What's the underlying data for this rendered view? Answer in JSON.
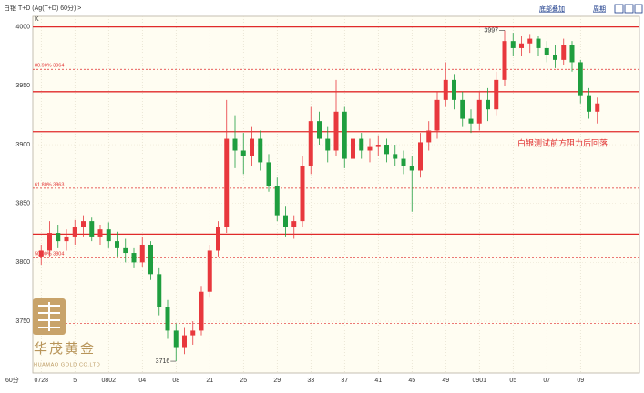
{
  "chart_data": {
    "type": "candlestick",
    "title": "白银  T+D (Ag(T+D) 60分) >",
    "indicator": "K",
    "period": "60分",
    "toolbar": [
      "底部叠加",
      "周期"
    ],
    "annotation": "白银测试前方阻力后回落",
    "high_label": 3997,
    "low_label": 3716,
    "logo": {
      "name": "华茂黄金",
      "subtitle": "HUAMAO GOLD CO.LTD"
    },
    "up_color": "#e8383d",
    "down_color": "#1f9e3f",
    "level_color": "#e02a2a",
    "grid": true,
    "ylim": [
      3706,
      4009
    ],
    "yticks": [
      3750,
      3800,
      3850,
      3900,
      3950,
      4000
    ],
    "xlim": [
      0,
      72
    ],
    "xticks": [
      {
        "value": 1,
        "label": "0728"
      },
      5,
      {
        "value": 9,
        "label": "0802"
      },
      {
        "value": 13,
        "label": "04"
      },
      {
        "value": 17,
        "label": "08"
      },
      21,
      25,
      29,
      33,
      37,
      41,
      45,
      49,
      {
        "value": 53,
        "label": "0901"
      },
      {
        "value": 57,
        "label": "05"
      },
      {
        "value": 61,
        "label": "07"
      },
      {
        "value": 65,
        "label": "09"
      }
    ],
    "resistance_levels": [
      4000,
      3945,
      3911,
      3824
    ],
    "fib_levels": [
      {
        "value": 3964,
        "label": "80.90% 3964"
      },
      {
        "value": 3863,
        "label": "61.80% 3863"
      },
      {
        "value": 3804,
        "label": "50.00% 3804"
      }
    ],
    "dashed_levels": [
      3748
    ],
    "x": [
      1,
      2,
      3,
      4,
      5,
      6,
      7,
      8,
      9,
      10,
      11,
      12,
      13,
      14,
      15,
      16,
      17,
      18,
      19,
      20,
      21,
      22,
      23,
      24,
      25,
      26,
      27,
      28,
      29,
      30,
      31,
      32,
      33,
      34,
      35,
      36,
      37,
      38,
      39,
      40,
      41,
      42,
      43,
      44,
      45,
      46,
      47,
      48,
      49,
      50,
      51,
      52,
      53,
      54,
      55,
      56,
      57,
      58,
      59,
      60,
      61,
      62,
      63,
      64,
      65,
      66,
      67
    ],
    "open": [
      3805,
      3810,
      3825,
      3818,
      3822,
      3830,
      3835,
      3822,
      3828,
      3818,
      3812,
      3808,
      3800,
      3815,
      3790,
      3762,
      3742,
      3728,
      3738,
      3742,
      3775,
      3810,
      3830,
      3905,
      3895,
      3890,
      3905,
      3885,
      3865,
      3840,
      3830,
      3835,
      3882,
      3920,
      3905,
      3895,
      3928,
      3888,
      3905,
      3895,
      3898,
      3900,
      3892,
      3888,
      3882,
      3878,
      3902,
      3912,
      3938,
      3955,
      3938,
      3922,
      3918,
      3938,
      3930,
      3955,
      3988,
      3982,
      3986,
      3990,
      3982,
      3976,
      3972,
      3985,
      3970,
      3942,
      3928
    ],
    "high": [
      3815,
      3835,
      3832,
      3828,
      3836,
      3840,
      3838,
      3832,
      3834,
      3826,
      3820,
      3812,
      3822,
      3818,
      3795,
      3768,
      3748,
      3745,
      3750,
      3780,
      3815,
      3835,
      3938,
      3925,
      3910,
      3915,
      3912,
      3892,
      3872,
      3848,
      3840,
      3890,
      3932,
      3928,
      3915,
      3955,
      3932,
      3912,
      3910,
      3905,
      3908,
      3905,
      3900,
      3895,
      3890,
      3910,
      3920,
      3945,
      3970,
      3960,
      3945,
      3930,
      3945,
      3948,
      3962,
      3997,
      3995,
      3992,
      3994,
      3992,
      3988,
      3985,
      3990,
      3988,
      3972,
      3948,
      3940
    ],
    "low": [
      3798,
      3805,
      3812,
      3810,
      3815,
      3822,
      3818,
      3815,
      3812,
      3805,
      3800,
      3795,
      3796,
      3785,
      3755,
      3735,
      3716,
      3722,
      3730,
      3738,
      3770,
      3805,
      3825,
      3880,
      3875,
      3882,
      3878,
      3860,
      3835,
      3822,
      3820,
      3830,
      3875,
      3900,
      3885,
      3890,
      3880,
      3882,
      3888,
      3885,
      3890,
      3885,
      3882,
      3875,
      3843,
      3872,
      3895,
      3905,
      3932,
      3930,
      3915,
      3910,
      3912,
      3920,
      3925,
      3950,
      3975,
      3975,
      3978,
      3975,
      3970,
      3965,
      3968,
      3962,
      3935,
      3922,
      3918
    ],
    "close": [
      3810,
      3825,
      3818,
      3822,
      3830,
      3835,
      3822,
      3828,
      3818,
      3812,
      3808,
      3800,
      3815,
      3790,
      3762,
      3742,
      3728,
      3738,
      3742,
      3775,
      3810,
      3830,
      3905,
      3895,
      3890,
      3905,
      3885,
      3865,
      3840,
      3830,
      3835,
      3882,
      3920,
      3905,
      3895,
      3928,
      3888,
      3905,
      3895,
      3898,
      3900,
      3892,
      3888,
      3882,
      3878,
      3902,
      3912,
      3938,
      3955,
      3938,
      3922,
      3918,
      3938,
      3930,
      3955,
      3988,
      3982,
      3986,
      3990,
      3982,
      3976,
      3972,
      3985,
      3970,
      3942,
      3928,
      3935
    ]
  }
}
